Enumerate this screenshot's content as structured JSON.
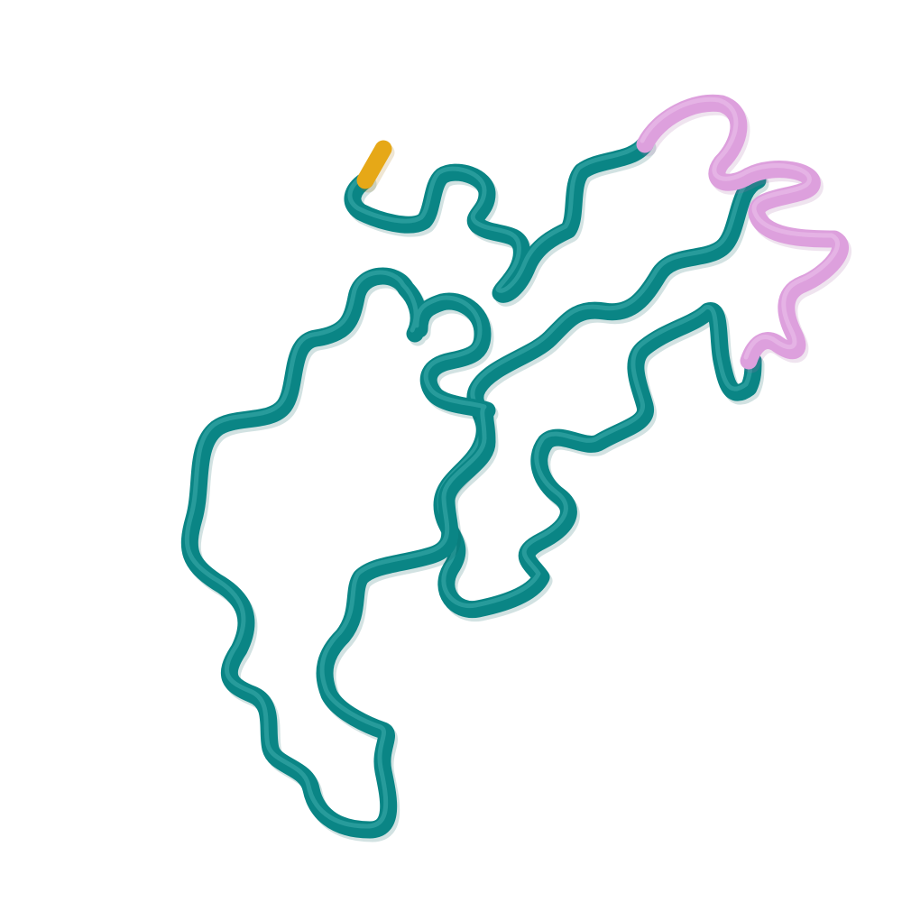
{
  "colors": {
    "background": "#ffffff",
    "coil": "#0a8585",
    "coil_shade": "#055c5c",
    "coil_highlight": "#5fc7c7",
    "helix": "#dda0dd",
    "helix_shade": "#a46aa4",
    "helix_highlight": "#f4d6f4",
    "terminus": "#e6a817",
    "terminus_shade": "#a8760c"
  },
  "segments": [
    {
      "kind": "terminus",
      "color_key": "terminus"
    },
    {
      "kind": "coil",
      "color_key": "coil"
    },
    {
      "kind": "helix",
      "color_key": "helix"
    },
    {
      "kind": "coil",
      "color_key": "coil"
    }
  ]
}
